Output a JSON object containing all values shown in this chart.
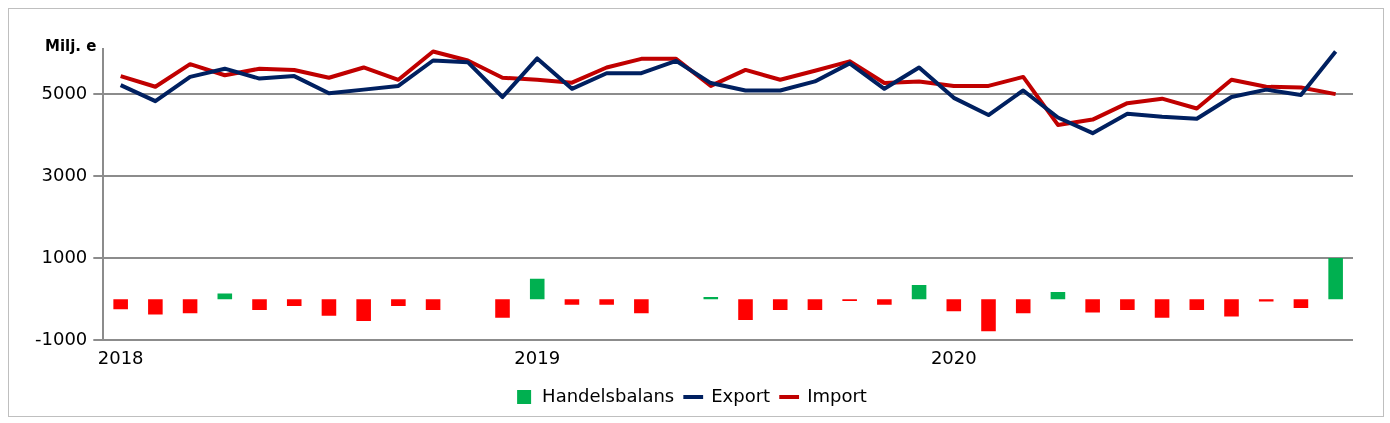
{
  "chart_data": {
    "type": "bar",
    "ylabel": "Milj. e",
    "categories": [
      "2018",
      null,
      null,
      null,
      null,
      null,
      null,
      null,
      null,
      null,
      null,
      null,
      "2019",
      null,
      null,
      null,
      null,
      null,
      null,
      null,
      null,
      null,
      null,
      null,
      "2020",
      null,
      null,
      null,
      null,
      null,
      null,
      null,
      null,
      null,
      null,
      null
    ],
    "series": [
      {
        "name": "Handelsbalans",
        "colors": [
          "#ff0000",
          "#ff0000",
          "#ff0000",
          "#00b050",
          "#ff0000",
          "#ff0000",
          "#ff0000",
          "#ff0000",
          "#ff0000",
          "#ff0000",
          "#ff0000",
          "#ff0000",
          "#00b050",
          "#ff0000",
          "#ff0000",
          "#ff0000",
          "#ff0000",
          "#00b050",
          "#ff0000",
          "#ff0000",
          "#ff0000",
          "#ff0000",
          "#ff0000",
          "#00b050",
          "#ff0000",
          "#ff0000",
          "#ff0000",
          "#00b050",
          "#ff0000",
          "#ff0000",
          "#ff0000",
          "#ff0000",
          "#ff0000",
          "#ff0000",
          "#ff0000",
          "#00b050"
        ],
        "color": "#00b050",
        "values": [
          -240,
          -370,
          -340,
          140,
          -260,
          -160,
          -400,
          -530,
          -160,
          -260,
          0,
          -450,
          500,
          -130,
          -130,
          -340,
          0,
          60,
          -500,
          -260,
          -260,
          -40,
          -130,
          350,
          -290,
          -780,
          -340,
          180,
          -320,
          -260,
          -450,
          -260,
          -420,
          -50,
          -210,
          1010
        ]
      },
      {
        "name": "Export",
        "type": "line",
        "color": "#002060",
        "values": [
          5220,
          4830,
          5420,
          5620,
          5380,
          5440,
          5020,
          5110,
          5200,
          5820,
          5780,
          4930,
          5870,
          5130,
          5510,
          5510,
          5810,
          5270,
          5090,
          5090,
          5310,
          5750,
          5130,
          5650,
          4910,
          4490,
          5090,
          4430,
          4050,
          4520,
          4450,
          4400,
          4930,
          5110,
          4980,
          6040
        ]
      },
      {
        "name": "Import",
        "type": "line",
        "color": "#c00000",
        "values": [
          5440,
          5180,
          5730,
          5460,
          5620,
          5590,
          5400,
          5650,
          5350,
          6040,
          5820,
          5400,
          5350,
          5280,
          5650,
          5860,
          5860,
          5200,
          5590,
          5350,
          5570,
          5800,
          5270,
          5310,
          5200,
          5200,
          5420,
          4250,
          4380,
          4780,
          4890,
          4650,
          5350,
          5180,
          5160,
          5000
        ]
      }
    ],
    "ylim": [
      -1000,
      6100
    ],
    "yticks": [
      -1000,
      1000,
      3000,
      5000
    ],
    "grid": "y",
    "legend": "bottom",
    "marker": "none",
    "line_style": "solid"
  }
}
